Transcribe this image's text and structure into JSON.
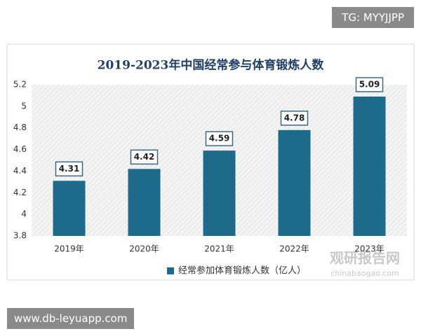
{
  "chart_data": {
    "type": "bar",
    "title": "2019-2023年中国经常参与体育锻炼人数",
    "categories": [
      "2019年",
      "2020年",
      "2021年",
      "2022年",
      "2023年"
    ],
    "series": [
      {
        "name": "经常参加体育锻炼人数（亿人）",
        "color": "#1e6a8a",
        "values": [
          4.31,
          4.42,
          4.59,
          4.78,
          5.09
        ]
      }
    ],
    "ylim": [
      3.8,
      5.2
    ],
    "yticks": [
      3.8,
      4,
      4.2,
      4.4,
      4.6,
      4.8,
      5,
      5.2
    ],
    "grid": false,
    "legend": "bottom"
  },
  "watermarks": [
    "TG: MYYJJPP",
    "www.db-leyuapp.com",
    "观研报告网",
    "chinabaogao.com"
  ]
}
